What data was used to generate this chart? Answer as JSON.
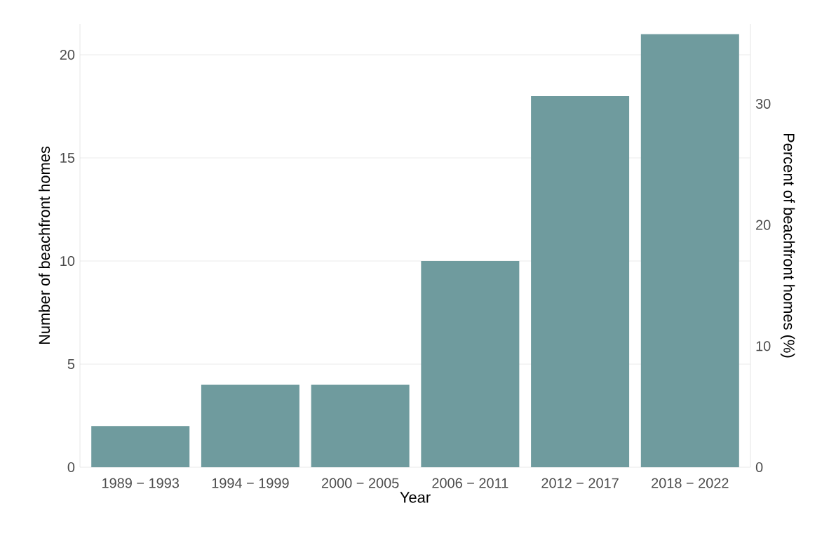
{
  "chart_data": {
    "type": "bar",
    "xlabel": "Year",
    "ylabel": "Number of beachfront homes",
    "y2label": "Percent of beachfront homes (%)",
    "categories": [
      "1989 − 1993",
      "1994 − 1999",
      "2000 − 2005",
      "2006 − 2011",
      "2012 − 2017",
      "2018 − 2022"
    ],
    "values": [
      2,
      4,
      4,
      10,
      18,
      21
    ],
    "color": "#6f9b9e",
    "ylim": [
      0,
      21.5
    ],
    "yticks": [
      0,
      5,
      10,
      15,
      20
    ],
    "y2lim": [
      0,
      36.6
    ],
    "y2ticks": [
      0,
      10,
      20,
      30
    ],
    "grid": "y"
  }
}
